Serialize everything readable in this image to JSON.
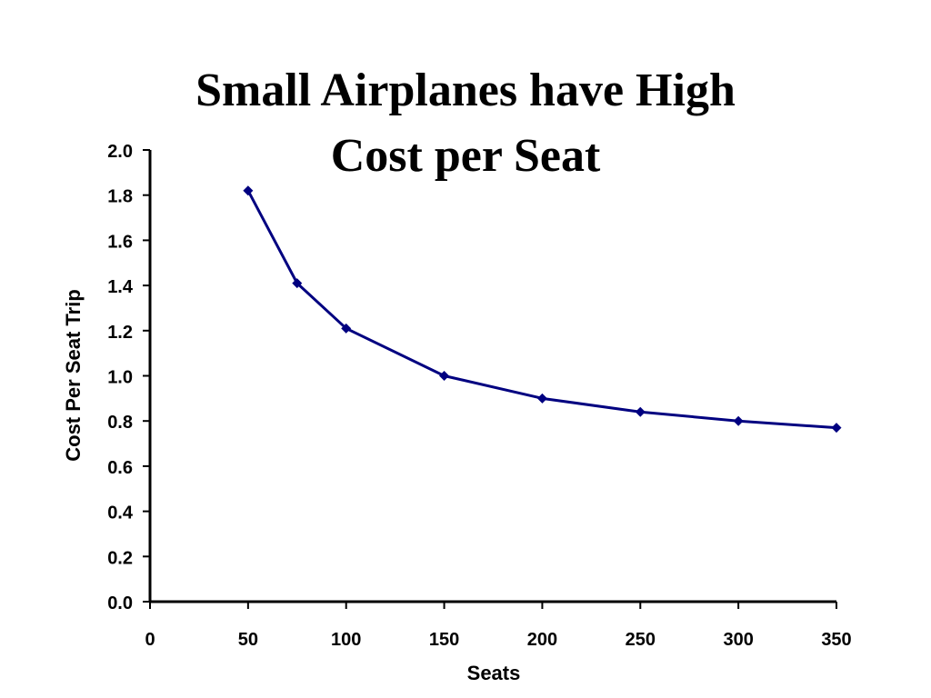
{
  "chart_data": {
    "type": "line",
    "title_lines": [
      "Small Airplanes have High",
      "Cost per Seat"
    ],
    "xlabel": "Seats",
    "ylabel": "Cost Per Seat Trip",
    "xlim": [
      0,
      350
    ],
    "ylim": [
      0,
      2.0
    ],
    "x_ticks": [
      "0",
      "50",
      "100",
      "150",
      "200",
      "250",
      "300",
      "350"
    ],
    "y_ticks": [
      "0.0",
      "0.2",
      "0.4",
      "0.6",
      "0.8",
      "1.0",
      "1.2",
      "1.4",
      "1.6",
      "1.8",
      "2.0"
    ],
    "grid": false,
    "legend": "none",
    "series": [
      {
        "color": "#000080",
        "marker": "diamond",
        "x": [
          50,
          75,
          100,
          150,
          200,
          250,
          300,
          350
        ],
        "y": [
          1.82,
          1.41,
          1.21,
          1.0,
          0.9,
          0.84,
          0.8,
          0.77
        ]
      }
    ]
  }
}
